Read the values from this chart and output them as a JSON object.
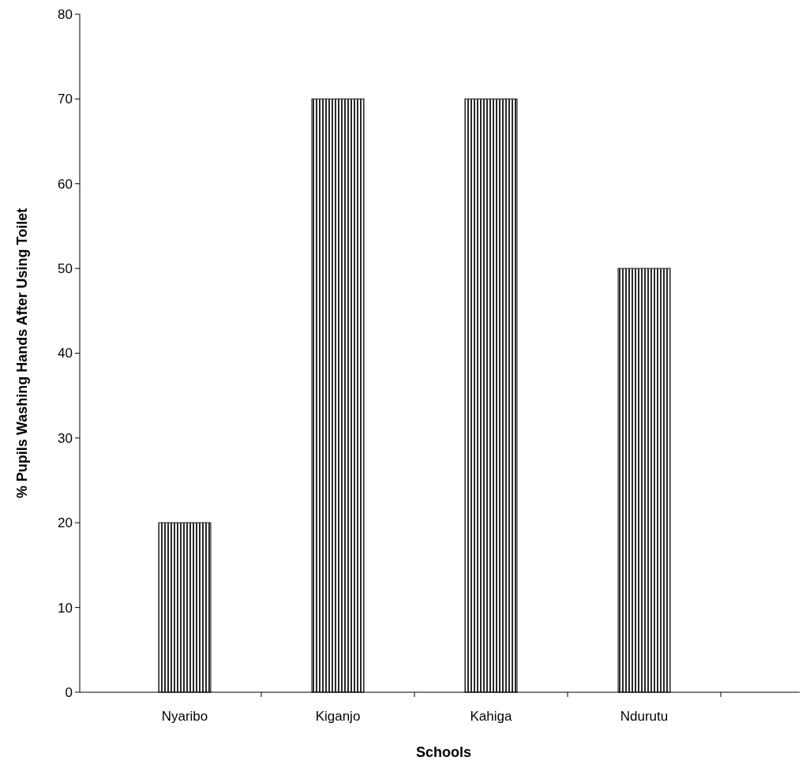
{
  "chart_data": {
    "type": "bar",
    "xlabel": "Schools",
    "ylabel": "% Pupils Washing Hands After Using Toilet",
    "categories": [
      "Nyaribo",
      "Kiganjo",
      "Kahiga",
      "Ndurutu"
    ],
    "values": [
      20,
      70,
      70,
      50
    ],
    "color": "#2a2a2a",
    "ylim": [
      0,
      80
    ],
    "yticks": [
      0,
      10,
      20,
      30,
      40,
      50,
      60,
      70,
      80
    ],
    "grid": false
  }
}
